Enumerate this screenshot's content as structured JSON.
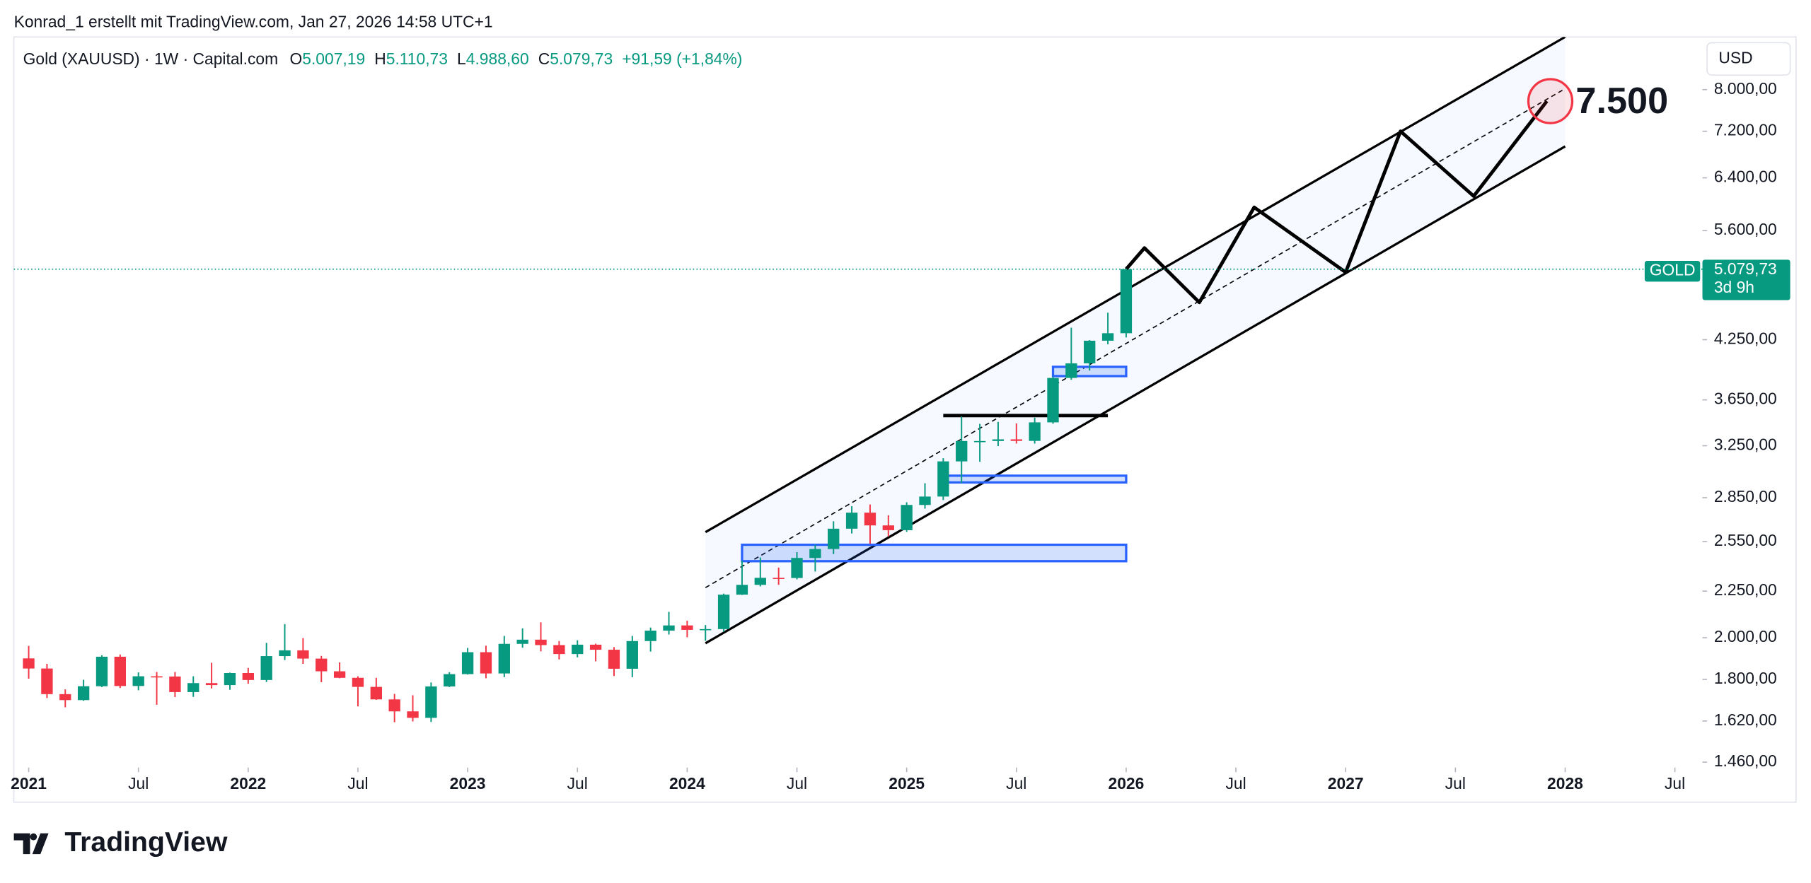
{
  "header": {
    "credit": "Konrad_1 erstellt mit TradingView.com, Jan 27, 2026 14:58 UTC+1"
  },
  "chart_data": {
    "type": "candlestick",
    "title": "Gold (XAUUSD) · 1W · Capital.com",
    "ohlc_legend": [
      {
        "label": "O",
        "value": "5.007,19"
      },
      {
        "label": "H",
        "value": "5.110,73"
      },
      {
        "label": "L",
        "value": "4.988,60"
      },
      {
        "label": "C",
        "value": "5.079,73"
      }
    ],
    "change": "+91,59 (+1,84%)",
    "currency": "USD",
    "x": [
      "2021-01",
      "2021-02",
      "2021-03",
      "2021-04",
      "2021-05",
      "2021-06",
      "2021-07",
      "2021-08",
      "2021-09",
      "2021-10",
      "2021-11",
      "2021-12",
      "2022-01",
      "2022-02",
      "2022-03",
      "2022-04",
      "2022-05",
      "2022-06",
      "2022-07",
      "2022-08",
      "2022-09",
      "2022-10",
      "2022-11",
      "2022-12",
      "2023-01",
      "2023-02",
      "2023-03",
      "2023-04",
      "2023-05",
      "2023-06",
      "2023-07",
      "2023-08",
      "2023-09",
      "2023-10",
      "2023-11",
      "2023-12",
      "2024-01",
      "2024-02",
      "2024-03",
      "2024-04",
      "2024-05",
      "2024-06",
      "2024-07",
      "2024-08",
      "2024-09",
      "2024-10",
      "2024-11",
      "2024-12",
      "2025-01",
      "2025-02",
      "2025-03",
      "2025-04",
      "2025-05",
      "2025-06",
      "2025-07",
      "2025-08",
      "2025-09",
      "2025-10",
      "2025-11",
      "2025-12",
      "2026-01"
    ],
    "open": [
      1898,
      1850,
      1734,
      1708,
      1769,
      1906,
      1770,
      1814,
      1813,
      1743,
      1783,
      1774,
      1829,
      1797,
      1909,
      1937,
      1897,
      1837,
      1807,
      1766,
      1711,
      1660,
      1633,
      1768,
      1824,
      1928,
      1827,
      1969,
      1990,
      1963,
      1919,
      1965,
      1940,
      1849,
      1983,
      2036,
      2063,
      2040,
      2044,
      2230,
      2286,
      2327,
      2326,
      2447,
      2503,
      2635,
      2744,
      2657,
      2625,
      2798,
      2858,
      3124,
      3289,
      3289,
      3303,
      3290,
      3448,
      3858,
      4003,
      4239,
      4320
    ],
    "high": [
      1959,
      1872,
      1755,
      1798,
      1913,
      1917,
      1832,
      1834,
      1834,
      1814,
      1877,
      1831,
      1853,
      1974,
      2070,
      1998,
      1910,
      1879,
      1814,
      1807,
      1735,
      1729,
      1786,
      1833,
      1949,
      1960,
      2009,
      2048,
      2079,
      1983,
      1987,
      1970,
      1953,
      2009,
      2052,
      2135,
      2088,
      2065,
      2236,
      2431,
      2450,
      2388,
      2483,
      2531,
      2685,
      2790,
      2801,
      2726,
      2817,
      2956,
      3149,
      3500,
      3435,
      3452,
      3439,
      3489,
      3871,
      4381,
      4245,
      4550,
      5110.73
    ],
    "low": [
      1803,
      1717,
      1677,
      1705,
      1765,
      1761,
      1751,
      1688,
      1721,
      1722,
      1759,
      1753,
      1780,
      1788,
      1890,
      1872,
      1787,
      1805,
      1681,
      1709,
      1615,
      1618,
      1616,
      1765,
      1822,
      1805,
      1810,
      1950,
      1932,
      1893,
      1903,
      1884,
      1815,
      1810,
      1931,
      2016,
      2002,
      1984,
      2030,
      2228,
      2277,
      2286,
      2318,
      2364,
      2471,
      2603,
      2536,
      2583,
      2614,
      2772,
      2833,
      2957,
      3121,
      3247,
      3268,
      3268,
      3436,
      3840,
      3930,
      4200,
      4275
    ],
    "close": [
      1850,
      1734,
      1708,
      1769,
      1906,
      1770,
      1814,
      1813,
      1743,
      1783,
      1774,
      1829,
      1797,
      1909,
      1937,
      1897,
      1837,
      1807,
      1766,
      1711,
      1660,
      1633,
      1768,
      1824,
      1928,
      1827,
      1969,
      1990,
      1963,
      1919,
      1965,
      1940,
      1849,
      1983,
      2036,
      2063,
      2040,
      2044,
      2230,
      2286,
      2327,
      2326,
      2447,
      2503,
      2635,
      2744,
      2657,
      2625,
      2798,
      2858,
      3124,
      3289,
      3289,
      3303,
      3290,
      3448,
      3858,
      4003,
      4239,
      4320,
      5079.73
    ],
    "up_color": "#089981",
    "down_color": "#f23645",
    "log_scale": true,
    "xlim": [
      "2020-12",
      "2028-08"
    ],
    "ylim": [
      1440,
      9140
    ],
    "xticks": [
      {
        "value": "2021-01",
        "label": "2021"
      },
      {
        "value": "2021-07",
        "label": "Jul"
      },
      {
        "value": "2022-01",
        "label": "2022"
      },
      {
        "value": "2022-07",
        "label": "Jul"
      },
      {
        "value": "2023-01",
        "label": "2023"
      },
      {
        "value": "2023-07",
        "label": "Jul"
      },
      {
        "value": "2024-01",
        "label": "2024"
      },
      {
        "value": "2024-07",
        "label": "Jul"
      },
      {
        "value": "2025-01",
        "label": "2025"
      },
      {
        "value": "2025-07",
        "label": "Jul"
      },
      {
        "value": "2026-01",
        "label": "2026"
      },
      {
        "value": "2026-07",
        "label": "Jul"
      },
      {
        "value": "2027-01",
        "label": "2027"
      },
      {
        "value": "2027-07",
        "label": "Jul"
      },
      {
        "value": "2028-01",
        "label": "2028"
      },
      {
        "value": "2028-07",
        "label": "Jul"
      }
    ],
    "yticks": [
      {
        "value": 8000,
        "label": "8.000,00"
      },
      {
        "value": 7200,
        "label": "7.200,00"
      },
      {
        "value": 6400,
        "label": "6.400,00"
      },
      {
        "value": 5600,
        "label": "5.600,00"
      },
      {
        "value": 4250,
        "label": "4.250,00"
      },
      {
        "value": 3650,
        "label": "3.650,00"
      },
      {
        "value": 3250,
        "label": "3.250,00"
      },
      {
        "value": 2850,
        "label": "2.850,00"
      },
      {
        "value": 2550,
        "label": "2.550,00"
      },
      {
        "value": 2250,
        "label": "2.250,00"
      },
      {
        "value": 2000,
        "label": "2.000,00"
      },
      {
        "value": 1800,
        "label": "1.800,00"
      },
      {
        "value": 1620,
        "label": "1.620,00"
      },
      {
        "value": 1460,
        "label": "1.460,00"
      }
    ],
    "last_price": {
      "symbol": "GOLD",
      "value": 5079.73,
      "label": "5.079,73",
      "countdown": "3d 9h",
      "color": "#089981"
    },
    "drawings": {
      "channel": [
        {
          "x": [
            "2024-02",
            "2028-01"
          ],
          "y": [
            2612,
            9140
          ]
        },
        {
          "x": [
            "2024-02",
            "2028-01"
          ],
          "y": [
            1972,
            6930
          ]
        }
      ],
      "median": {
        "x": [
          "2024-02",
          "2028-01"
        ],
        "y": [
          2270,
          8020
        ]
      },
      "zones": [
        {
          "x": [
            "2024-04",
            "2026-01"
          ],
          "y": [
            2427,
            2530
          ]
        },
        {
          "x": [
            "2025-03",
            "2026-01"
          ],
          "y": [
            2962,
            3013
          ]
        },
        {
          "x": [
            "2025-09",
            "2026-01"
          ],
          "y": [
            3876,
            3968
          ]
        }
      ],
      "level": {
        "x": [
          "2025-03",
          "2025-12"
        ],
        "y": 3508
      },
      "projection": {
        "x": [
          "2026-01",
          "2026-02",
          "2026-05",
          "2026-08",
          "2027-01",
          "2027-04",
          "2027-08",
          "2027-12"
        ],
        "y": [
          5079.73,
          5360,
          4670,
          5940,
          5040,
          7200,
          6110,
          7770
        ]
      },
      "target": {
        "x": "2027-12",
        "y": 7770,
        "label": "7.500"
      }
    },
    "footer": {
      "brand": "TradingView"
    }
  }
}
